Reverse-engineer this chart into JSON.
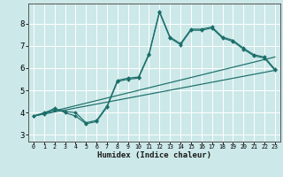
{
  "xlabel": "Humidex (Indice chaleur)",
  "xlim": [
    -0.5,
    23.5
  ],
  "ylim": [
    2.7,
    8.9
  ],
  "yticks": [
    3,
    4,
    5,
    6,
    7,
    8
  ],
  "xticks": [
    0,
    1,
    2,
    3,
    4,
    5,
    6,
    7,
    8,
    9,
    10,
    11,
    12,
    13,
    14,
    15,
    16,
    17,
    18,
    19,
    20,
    21,
    22,
    23
  ],
  "bg_color": "#cce8e8",
  "grid_color": "#ffffff",
  "line_color": "#1a6e6a",
  "line1_x": [
    0,
    1,
    2,
    3,
    4,
    5,
    6,
    7,
    8,
    9,
    10,
    11,
    12,
    13,
    14,
    15,
    16,
    17,
    18,
    19,
    20,
    21,
    22,
    23
  ],
  "line1_y": [
    3.85,
    3.95,
    4.2,
    4.0,
    3.85,
    3.5,
    3.6,
    4.25,
    5.4,
    5.5,
    5.55,
    6.6,
    8.5,
    7.35,
    7.05,
    7.7,
    7.7,
    7.8,
    7.35,
    7.2,
    6.85,
    6.55,
    6.45,
    5.9
  ],
  "line2_x": [
    0,
    1,
    2,
    3,
    4,
    5,
    6,
    7,
    8,
    9,
    10,
    11,
    12,
    13,
    14,
    15,
    16,
    17,
    18,
    19,
    20,
    21,
    22,
    23
  ],
  "line2_y": [
    3.85,
    4.0,
    4.15,
    4.05,
    4.0,
    3.55,
    3.65,
    4.3,
    5.45,
    5.55,
    5.6,
    6.65,
    8.55,
    7.4,
    7.1,
    7.75,
    7.75,
    7.85,
    7.4,
    7.25,
    6.9,
    6.6,
    6.5,
    5.95
  ],
  "line3_x": [
    0,
    23
  ],
  "line3_y": [
    3.85,
    5.9
  ],
  "line4_x": [
    0,
    23
  ],
  "line4_y": [
    3.85,
    6.5
  ]
}
